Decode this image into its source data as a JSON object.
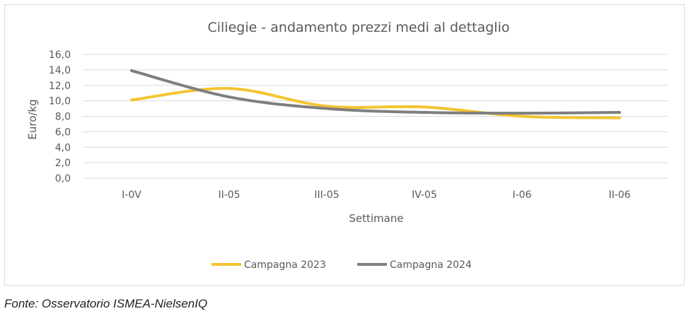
{
  "chart_data": {
    "type": "line",
    "title": "Ciliegie - andamento prezzi medi al dettaglio",
    "xlabel": "Settimane",
    "ylabel": "Euro/kg",
    "categories": [
      "I-0V",
      "II-05",
      "III-05",
      "IV-05",
      "I-06",
      "II-06"
    ],
    "ylim": [
      0,
      16
    ],
    "yticks": [
      "0,0",
      "2,0",
      "4,0",
      "6,0",
      "8,0",
      "10,0",
      "12,0",
      "14,0",
      "16,0"
    ],
    "grid": true,
    "legend_position": "bottom",
    "series": [
      {
        "name": "Campagna 2023",
        "color": "#F4C430",
        "values": [
          10.1,
          11.6,
          9.3,
          9.2,
          8.0,
          7.8
        ]
      },
      {
        "name": "Campagna 2024",
        "color": "#7F7F7F",
        "values": [
          13.9,
          10.5,
          9.0,
          8.5,
          8.4,
          8.5
        ]
      }
    ]
  },
  "source": "Fonte: Osservatorio ISMEA-NielsenIQ"
}
